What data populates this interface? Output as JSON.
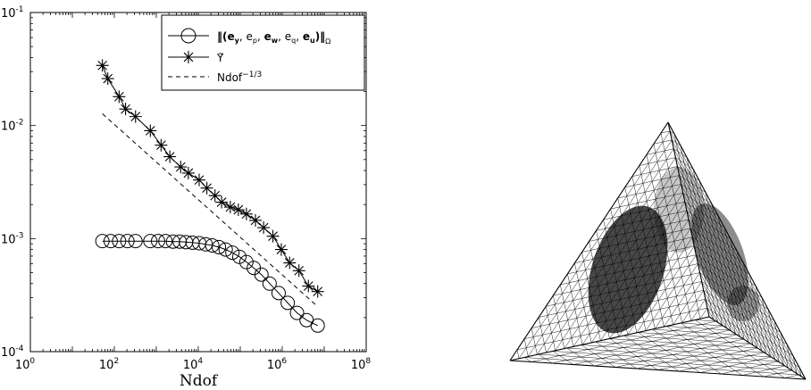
{
  "chart_data": {
    "type": "scatter",
    "xscale": "log",
    "yscale": "log",
    "xlim": [
      1,
      100000000
    ],
    "ylim": [
      0.0001,
      0.1
    ],
    "xlabel": "Ndof",
    "ylabel": "",
    "title": "",
    "grid": false,
    "legend_position": "top-right",
    "x_ticks": [
      {
        "base": "10",
        "exp": "0"
      },
      {
        "base": "10",
        "exp": "2"
      },
      {
        "base": "10",
        "exp": "4"
      },
      {
        "base": "10",
        "exp": "6"
      },
      {
        "base": "10",
        "exp": "8"
      }
    ],
    "y_ticks": [
      {
        "base": "10",
        "exp": "-4"
      },
      {
        "base": "10",
        "exp": "-3"
      },
      {
        "base": "10",
        "exp": "-2"
      },
      {
        "base": "10",
        "exp": "-1"
      }
    ],
    "series": [
      {
        "name": "|||(e_y, e_p, e_w, e_q, e_u)|||_Ω",
        "marker": "circle",
        "line": "solid",
        "color": "#000000",
        "x": [
          52,
          82,
          130,
          205,
          320,
          720,
          1100,
          1650,
          2500,
          3600,
          5100,
          7300,
          10500,
          15000,
          21500,
          31000,
          45000,
          65000,
          95000,
          140000,
          210000,
          320000,
          500000,
          820000,
          1350000,
          2250000,
          3800000,
          7000000
        ],
        "y": [
          0.00095,
          0.00095,
          0.00095,
          0.00095,
          0.00095,
          0.00095,
          0.00095,
          0.00095,
          0.00094,
          0.00094,
          0.00093,
          0.00092,
          0.00091,
          0.00089,
          0.00087,
          0.00084,
          0.0008,
          0.00075,
          0.00069,
          0.00062,
          0.00055,
          0.00048,
          0.0004,
          0.00033,
          0.00027,
          0.00022,
          0.00019,
          0.00017
        ]
      },
      {
        "name": "Υ̃",
        "marker": "star",
        "line": "solid",
        "color": "#000000",
        "x": [
          52,
          70,
          130,
          185,
          320,
          720,
          1300,
          2100,
          3800,
          5800,
          10500,
          16000,
          25000,
          36000,
          58000,
          90000,
          140000,
          230000,
          360000,
          600000,
          950000,
          1500000,
          2500000,
          4200000,
          7000000
        ],
        "y": [
          0.034,
          0.026,
          0.018,
          0.014,
          0.012,
          0.009,
          0.0067,
          0.0053,
          0.0043,
          0.0038,
          0.0033,
          0.0028,
          0.0024,
          0.0021,
          0.0019,
          0.0018,
          0.00165,
          0.00145,
          0.00125,
          0.00105,
          0.0008,
          0.00061,
          0.00052,
          0.00038,
          0.00034
        ]
      },
      {
        "name": "Ndof^{-1/3}",
        "marker": "none",
        "line": "dashed",
        "color": "#000000",
        "x": [
          52,
          7000000
        ],
        "y": [
          0.0127,
          0.00025
        ]
      }
    ]
  },
  "legend": {
    "entries": [
      {
        "label": "(e",
        "parts": [
          "e_y",
          "e_p",
          "e_w",
          "e_q",
          "e_u",
          "Ω"
        ]
      },
      {
        "label": "Υ̃"
      },
      {
        "label": "Ndof",
        "exp": "−1/3"
      }
    ]
  },
  "mesh": {
    "shape": "tetrahedron-wireframe",
    "refined_regions": "dense dark patch on left face and right face interior"
  }
}
